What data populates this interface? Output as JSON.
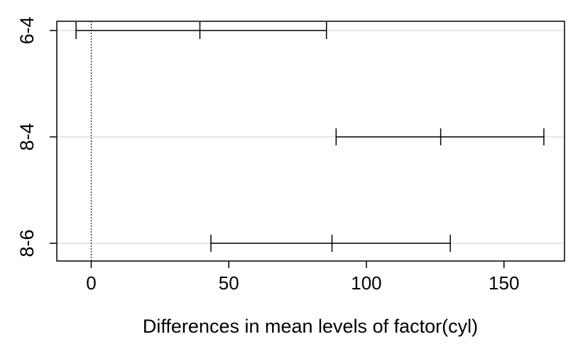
{
  "chart_data": {
    "type": "confidence-interval",
    "title": "",
    "xlabel": "Differences in mean levels of factor(cyl)",
    "ylabel": "",
    "xlim": [
      -12.5,
      172
    ],
    "x_ticks": [
      0,
      50,
      100,
      150
    ],
    "x_tick_labels": [
      "0",
      "50",
      "100",
      "150"
    ],
    "reference_line": 0,
    "grid": "horizontal, light gray, one per comparison",
    "comparisons": [
      {
        "label": "6-4",
        "lower": -5.5,
        "diff": 39.5,
        "upper": 85.5
      },
      {
        "label": "8-4",
        "lower": 89.0,
        "diff": 127.0,
        "upper": 164.5
      },
      {
        "label": "8-6",
        "lower": 43.5,
        "diff": 87.5,
        "upper": 130.5
      }
    ]
  }
}
